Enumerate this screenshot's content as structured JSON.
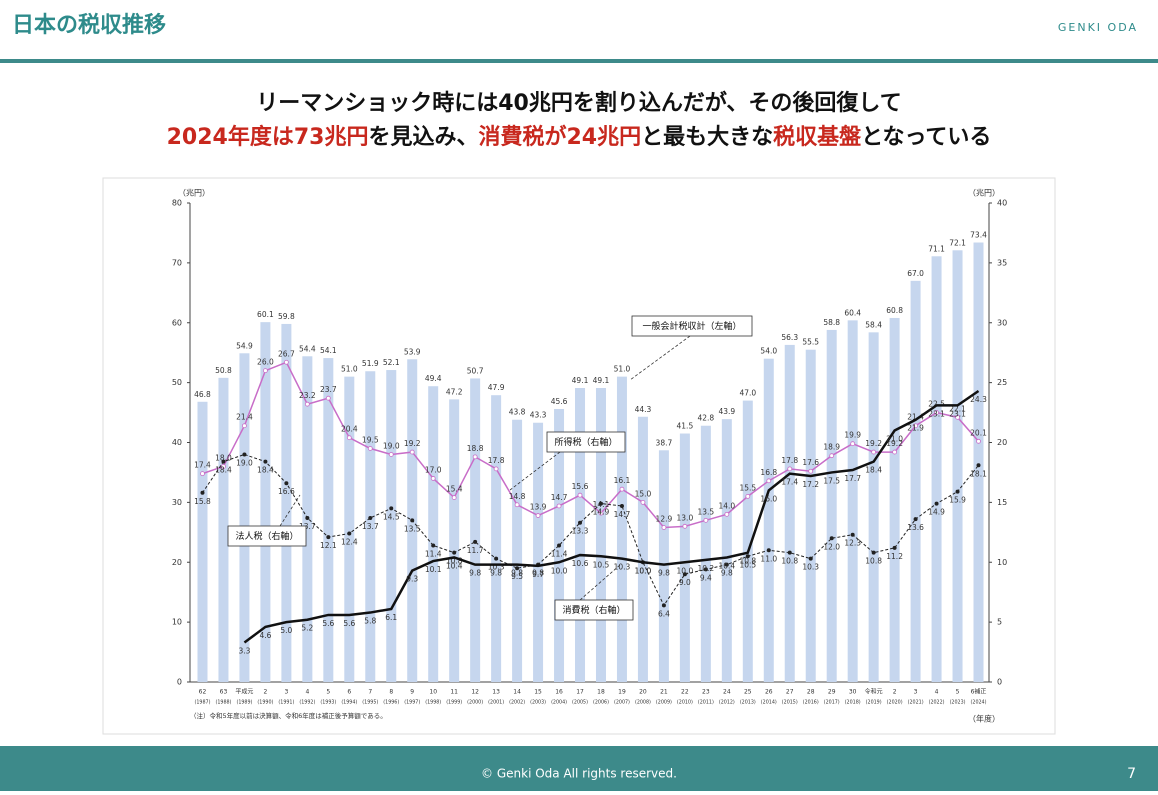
{
  "header": {
    "title": "日本の税収推移",
    "brand": "GENKI ODA"
  },
  "headline": {
    "line1": "リーマンショック時には40兆円を割り込んだが、その後回復して",
    "line2": [
      {
        "text": "2024年度は73兆円",
        "highlight": true
      },
      {
        "text": "を見込み、",
        "highlight": false
      },
      {
        "text": "消費税が24兆円",
        "highlight": true
      },
      {
        "text": "と最も大きな",
        "highlight": false
      },
      {
        "text": "税収基盤",
        "highlight": true
      },
      {
        "text": "となっている",
        "highlight": false
      }
    ]
  },
  "chart_data": {
    "type": "combo",
    "y_label": "（兆円）",
    "y2_label": "（兆円）",
    "x_label": "（年度）",
    "note": "（注）令和5年度以前は決算額、令和6年度は補正後予算額である。",
    "categories": [
      "62",
      "63",
      "平成元",
      "2",
      "3",
      "4",
      "5",
      "6",
      "7",
      "8",
      "9",
      "10",
      "11",
      "12",
      "13",
      "14",
      "15",
      "16",
      "17",
      "18",
      "19",
      "20",
      "21",
      "22",
      "23",
      "24",
      "25",
      "26",
      "27",
      "28",
      "29",
      "30",
      "令和元",
      "2",
      "3",
      "4",
      "5",
      "6補正"
    ],
    "x_sublabels": [
      "(1987)",
      "(1988)",
      "(1989)",
      "(1990)",
      "(1991)",
      "(1992)",
      "(1993)",
      "(1994)",
      "(1995)",
      "(1996)",
      "(1997)",
      "(1998)",
      "(1999)",
      "(2000)",
      "(2001)",
      "(2002)",
      "(2003)",
      "(2004)",
      "(2005)",
      "(2006)",
      "(2007)",
      "(2008)",
      "(2009)",
      "(2010)",
      "(2011)",
      "(2012)",
      "(2013)",
      "(2014)",
      "(2015)",
      "(2016)",
      "(2017)",
      "(2018)",
      "(2019)",
      "(2020)",
      "(2021)",
      "(2022)",
      "(2023)",
      "(2024)"
    ],
    "ylim": [
      0,
      80
    ],
    "yticks": [
      0,
      10,
      20,
      30,
      40,
      50,
      60,
      70,
      80
    ],
    "y2lim": [
      0,
      40
    ],
    "y2ticks": [
      0,
      5,
      10,
      15,
      20,
      25,
      30,
      35,
      40
    ],
    "series": [
      {
        "name": "一般会計税収計（左軸）",
        "type": "bar",
        "color": "#c6d6ee",
        "label_position": "above",
        "values": [
          46.8,
          50.8,
          54.9,
          60.1,
          59.8,
          54.4,
          54.1,
          51.0,
          51.9,
          52.1,
          53.9,
          49.4,
          47.2,
          50.7,
          47.9,
          43.8,
          43.3,
          45.6,
          49.1,
          49.1,
          51.0,
          44.3,
          38.7,
          41.5,
          42.8,
          43.9,
          47.0,
          54.0,
          56.3,
          55.5,
          58.8,
          60.4,
          58.4,
          60.8,
          67.0,
          71.1,
          72.1,
          73.4
        ],
        "value_labels": [
          "46.8",
          "50.8",
          "54.9",
          "60.1",
          "59.8",
          "54.4",
          "54.1",
          "51.0",
          "51.9",
          "52.1",
          "53.9",
          "49.4",
          "47.2",
          "50.7",
          "47.9",
          "43.8",
          "43.3",
          "45.6",
          "49.1",
          "49.1",
          "51.0",
          "44.3",
          "38.7",
          "41.5",
          "42.8",
          "43.9",
          "47.0",
          "54.0",
          "56.3",
          "55.5",
          "58.8",
          "60.4",
          "58.4",
          "60.8",
          "67.0",
          "71.1",
          "72.1",
          "73.4"
        ]
      },
      {
        "name": "所得税（右軸）",
        "type": "line",
        "axis": "y2",
        "color": "#c86dc8",
        "width": 1.5,
        "marker": "open",
        "label_position": "above",
        "values": [
          17.4,
          18.0,
          21.4,
          26.0,
          26.7,
          23.2,
          23.7,
          20.4,
          19.5,
          19.0,
          19.2,
          17.0,
          15.4,
          18.8,
          17.8,
          14.8,
          13.9,
          14.7,
          15.6,
          14.1,
          16.1,
          15.0,
          12.9,
          13.0,
          13.5,
          14.0,
          15.5,
          16.8,
          17.8,
          17.6,
          18.9,
          19.9,
          19.2,
          19.2,
          21.4,
          22.5,
          22.1,
          20.1
        ],
        "value_labels": [
          "17.4",
          "18.0",
          "21.4",
          "26.0",
          "26.7",
          "23.2",
          "23.7",
          "20.4",
          "19.5",
          "19.0",
          "19.2",
          "17.0",
          "15.4",
          "18.8",
          "17.8",
          "14.8",
          "13.9",
          "14.7",
          "15.6",
          "14.1",
          "16.1",
          "15.0",
          "12.9",
          "13.0",
          "13.5",
          "14.0",
          "15.5",
          "16.8",
          "17.8",
          "17.6",
          "18.9",
          "19.9",
          "19.2",
          "19.2",
          "21.4",
          "22.5",
          "22.1",
          "20.1"
        ]
      },
      {
        "name": "法人税（右軸）",
        "type": "line",
        "axis": "y2",
        "color": "#222222",
        "width": 1,
        "dashed": true,
        "marker": "filled",
        "label_position": "below",
        "values": [
          15.8,
          18.4,
          19.0,
          18.4,
          16.6,
          13.7,
          12.1,
          12.4,
          13.7,
          14.5,
          13.5,
          11.4,
          10.8,
          11.7,
          10.3,
          9.5,
          9.8,
          11.4,
          13.3,
          14.9,
          14.7,
          10.0,
          6.4,
          9.0,
          9.4,
          9.8,
          10.5,
          11.0,
          10.8,
          10.3,
          12.0,
          12.3,
          10.8,
          11.2,
          13.6,
          14.9,
          15.9,
          18.1
        ],
        "value_labels": [
          "15.8",
          "18.4",
          "19.0",
          "18.4",
          "16.6",
          "13.7",
          "12.1",
          "12.4",
          "13.7",
          "14.5",
          "13.5",
          "11.4",
          "10.8",
          "11.7",
          "10.3",
          "9.5",
          "9.8",
          "11.4",
          "13.3",
          "14.9",
          "14.7",
          "10.0",
          "6.4",
          "9.0",
          "9.4",
          "9.8",
          "10.5",
          "11.0",
          "10.8",
          "10.3",
          "12.0",
          "12.3",
          "10.8",
          "11.2",
          "13.6",
          "14.9",
          "15.9",
          "18.1"
        ]
      },
      {
        "name": "消費税（右軸）",
        "type": "line",
        "axis": "y2",
        "color": "#111111",
        "width": 2.5,
        "label_position": "below",
        "values": [
          null,
          null,
          3.3,
          4.6,
          5.0,
          5.2,
          5.6,
          5.6,
          5.8,
          6.1,
          9.3,
          10.1,
          10.4,
          9.8,
          9.8,
          9.8,
          9.7,
          10.0,
          10.6,
          10.5,
          10.3,
          10.0,
          9.8,
          10.0,
          10.2,
          10.4,
          10.8,
          16.0,
          17.4,
          17.2,
          17.5,
          17.7,
          18.4,
          21.0,
          21.9,
          23.1,
          23.1,
          24.3
        ],
        "value_labels": [
          null,
          null,
          "3.3",
          "4.6",
          "5.0",
          "5.2",
          "5.6",
          "5.6",
          "5.8",
          "6.1",
          "9.3",
          "10.1",
          "10.4",
          "9.8",
          "9.8",
          "9.8",
          "9.7",
          "10.0",
          "10.6",
          "10.5",
          "10.3",
          "10.0",
          "9.8",
          "10.0",
          "10.2",
          "10.4",
          "10.8",
          "16.0",
          "17.4",
          "17.2",
          "17.5",
          "17.7",
          "18.4",
          "21.0",
          "21.9",
          "23.1",
          "23.1",
          "24.3"
        ]
      }
    ]
  },
  "footer": {
    "copyright": "© Genki Oda All rights reserved.",
    "page": "7"
  }
}
